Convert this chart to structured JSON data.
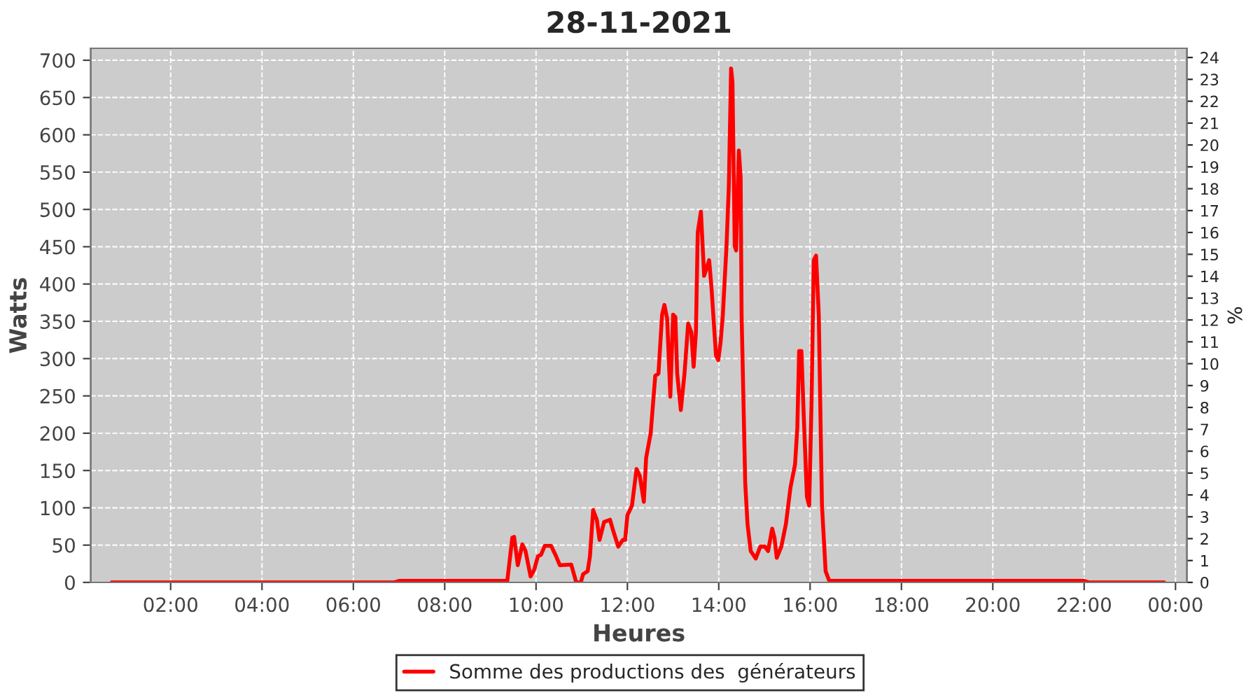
{
  "chart_data": {
    "type": "line",
    "title": "28-11-2021",
    "xlabel": "Heures",
    "ylabel": "Watts",
    "y2label": "%",
    "x": [
      0.71,
      6.9,
      7.0,
      9.3,
      9.37,
      9.48,
      9.52,
      9.6,
      9.7,
      9.77,
      9.88,
      9.96,
      10.04,
      10.11,
      10.19,
      10.33,
      10.44,
      10.52,
      10.77,
      10.88,
      10.98,
      11.03,
      11.13,
      11.18,
      11.25,
      11.33,
      11.39,
      11.49,
      11.62,
      11.69,
      11.8,
      11.9,
      11.95,
      12.0,
      12.1,
      12.2,
      12.27,
      12.36,
      12.41,
      12.51,
      12.61,
      12.68,
      12.76,
      12.81,
      12.87,
      12.94,
      13.0,
      13.05,
      13.09,
      13.17,
      13.25,
      13.33,
      13.4,
      13.45,
      13.5,
      13.54,
      13.61,
      13.68,
      13.79,
      13.84,
      13.94,
      13.99,
      14.04,
      14.09,
      14.17,
      14.22,
      14.27,
      14.3,
      14.35,
      14.38,
      14.44,
      14.48,
      14.5,
      14.58,
      14.63,
      14.7,
      14.81,
      14.91,
      15.01,
      15.08,
      15.17,
      15.22,
      15.27,
      15.37,
      15.47,
      15.57,
      15.67,
      15.72,
      15.76,
      15.81,
      15.86,
      15.93,
      15.98,
      16.03,
      16.08,
      16.13,
      16.19,
      16.26,
      16.34,
      16.42,
      22.0,
      22.1,
      23.75
    ],
    "series": [
      {
        "name": "Somme des productions des  générateurs",
        "color": "#ff0000",
        "values": [
          0,
          0,
          2,
          2,
          2,
          60,
          61,
          23,
          51,
          42,
          8,
          17,
          35,
          37,
          49,
          49,
          35,
          23,
          24,
          0,
          0,
          11,
          15,
          35,
          97,
          84,
          57,
          81,
          84,
          69,
          48,
          57,
          57,
          90,
          103,
          152,
          143,
          108,
          167,
          200,
          277,
          280,
          359,
          372,
          354,
          249,
          359,
          356,
          280,
          231,
          280,
          347,
          335,
          289,
          335,
          469,
          497,
          411,
          432,
          396,
          304,
          298,
          322,
          359,
          451,
          530,
          689,
          671,
          451,
          445,
          579,
          542,
          359,
          133,
          78,
          42,
          32,
          48,
          48,
          42,
          72,
          60,
          33,
          48,
          78,
          127,
          158,
          207,
          310,
          310,
          225,
          115,
          103,
          237,
          432,
          438,
          359,
          103,
          15,
          2,
          2,
          0,
          0
        ]
      }
    ],
    "xlim": [
      0.25,
      24.25
    ],
    "xticks": [
      {
        "value": 2,
        "label": "02:00"
      },
      {
        "value": 4,
        "label": "04:00"
      },
      {
        "value": 6,
        "label": "06:00"
      },
      {
        "value": 8,
        "label": "08:00"
      },
      {
        "value": 10,
        "label": "10:00"
      },
      {
        "value": 12,
        "label": "12:00"
      },
      {
        "value": 14,
        "label": "14:00"
      },
      {
        "value": 16,
        "label": "16:00"
      },
      {
        "value": 18,
        "label": "18:00"
      },
      {
        "value": 20,
        "label": "20:00"
      },
      {
        "value": 22,
        "label": "22:00"
      },
      {
        "value": 24,
        "label": "00:00"
      }
    ],
    "ylim": [
      0,
      716
    ],
    "yticks": [
      0,
      50,
      100,
      150,
      200,
      250,
      300,
      350,
      400,
      450,
      500,
      550,
      600,
      650,
      700
    ],
    "y2lim": [
      0,
      24.42
    ],
    "y2ticks": [
      0,
      1,
      2,
      3,
      4,
      5,
      6,
      7,
      8,
      9,
      10,
      11,
      12,
      13,
      14,
      15,
      16,
      17,
      18,
      19,
      20,
      21,
      22,
      23,
      24
    ],
    "grid": true,
    "legend": "bottom",
    "line_style": "solid",
    "marker": "none"
  }
}
